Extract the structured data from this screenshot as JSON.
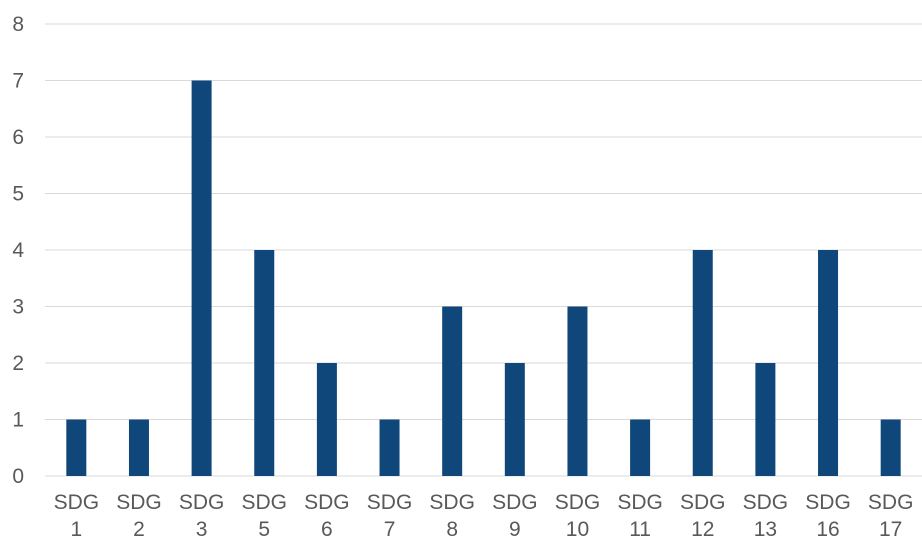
{
  "chart_data": {
    "type": "bar",
    "title": "",
    "xlabel": "",
    "ylabel": "",
    "ylim": [
      0,
      8
    ],
    "yticks": [
      0,
      1,
      2,
      3,
      4,
      5,
      6,
      7,
      8
    ],
    "grid": true,
    "legend": "none",
    "bar_color": "#0f477a",
    "categories": [
      [
        "SDG",
        "1"
      ],
      [
        "SDG",
        "2"
      ],
      [
        "SDG",
        "3"
      ],
      [
        "SDG",
        "5"
      ],
      [
        "SDG",
        "6"
      ],
      [
        "SDG",
        "7"
      ],
      [
        "SDG",
        "8"
      ],
      [
        "SDG",
        "9"
      ],
      [
        "SDG",
        "10"
      ],
      [
        "SDG",
        "11"
      ],
      [
        "SDG",
        "12"
      ],
      [
        "SDG",
        "13"
      ],
      [
        "SDG",
        "16"
      ],
      [
        "SDG",
        "17"
      ]
    ],
    "values": [
      1,
      1,
      7,
      4,
      2,
      1,
      3,
      2,
      3,
      1,
      4,
      2,
      4,
      1
    ]
  }
}
